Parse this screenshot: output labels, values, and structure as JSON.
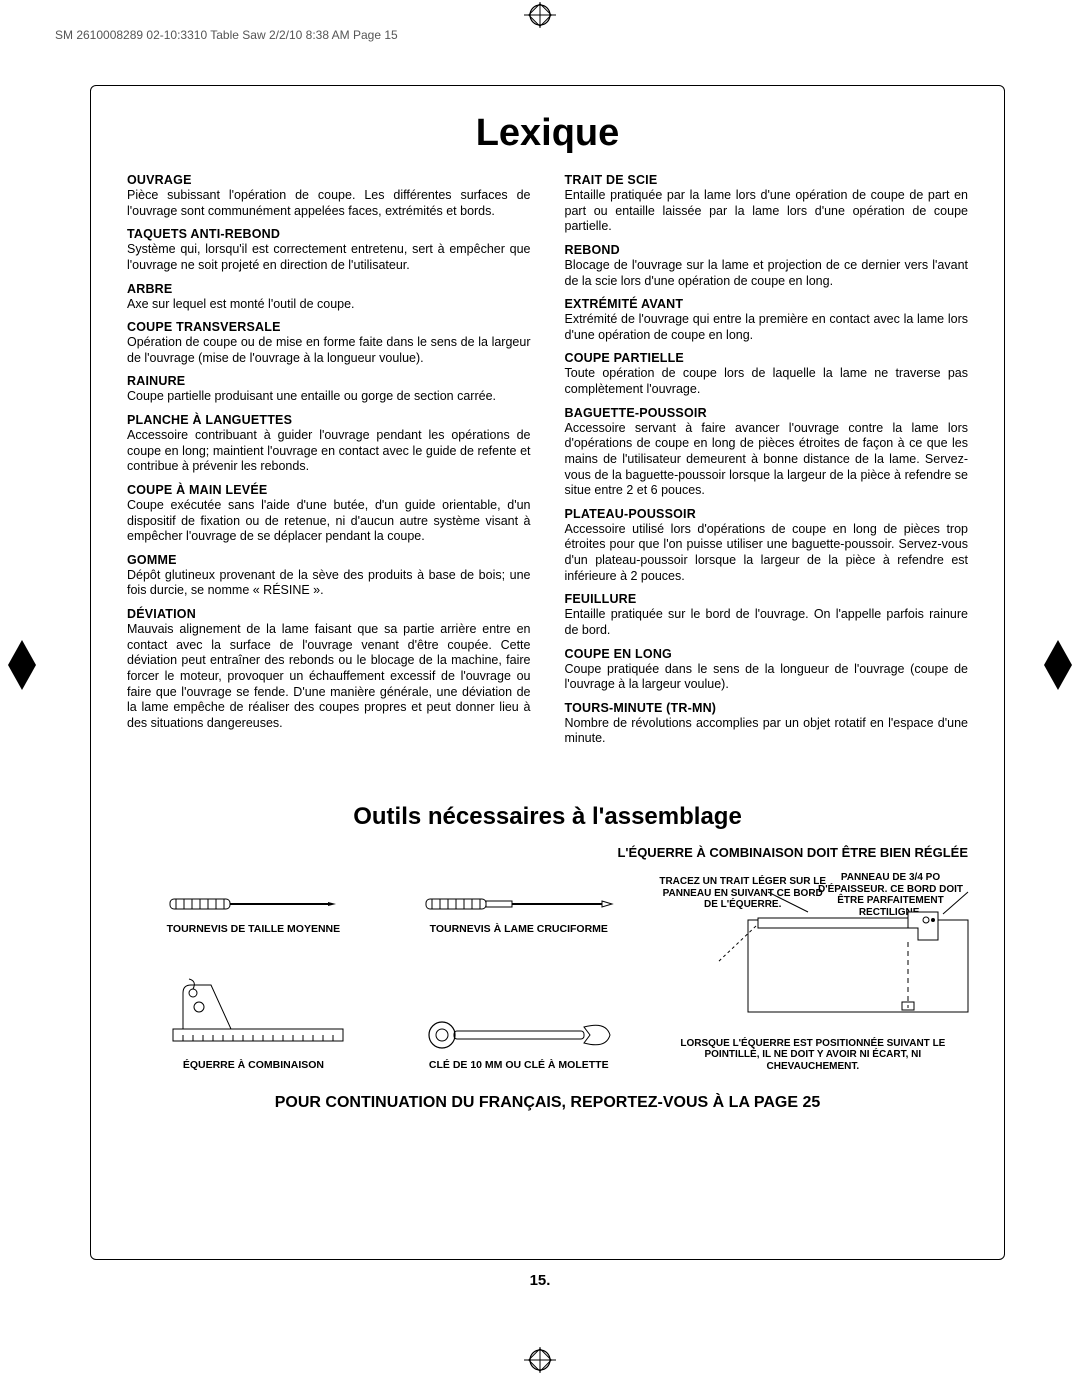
{
  "page_meta": "SM 2610008289 02-10:3310 Table Saw  2/2/10  8:38 AM  Page 15",
  "title": "Lexique",
  "colors": {
    "text": "#000000",
    "meta": "#555555",
    "bg": "#ffffff",
    "border": "#000000"
  },
  "typography": {
    "title_fontsize": 38,
    "subtitle_fontsize": 24,
    "body_fontsize": 12.5,
    "tool_label_fontsize": 10.5,
    "footer_fontsize": 16
  },
  "left_terms": [
    {
      "head": "OUVRAGE",
      "body": "Pièce subissant l'opération de coupe. Les différentes surfaces de l'ouvrage sont communément appelées faces, extrémités et bords."
    },
    {
      "head": "TAQUETS ANTI-REBOND",
      "body": "Système qui, lorsqu'il est correctement entretenu, sert à empêcher que l'ouvrage ne soit projeté en direction de l'utilisateur."
    },
    {
      "head": "ARBRE",
      "body": "Axe sur lequel est monté l'outil de coupe."
    },
    {
      "head": "COUPE TRANSVERSALE",
      "body": "Opération de coupe ou de mise en forme faite dans le sens de la largeur de l'ouvrage (mise de l'ouvrage à la longueur voulue)."
    },
    {
      "head": "RAINURE",
      "body": "Coupe partielle produisant une entaille ou gorge de section carrée."
    },
    {
      "head": "PLANCHE À LANGUETTES",
      "body": "Accessoire contribuant à guider l'ouvrage pendant les opérations de coupe en long; maintient l'ouvrage en contact avec le guide de refente et contribue à prévenir les rebonds."
    },
    {
      "head": "COUPE À MAIN LEVÉE",
      "body": "Coupe exécutée sans l'aide d'une butée, d'un guide orientable, d'un dispositif de fixation ou de retenue, ni d'aucun autre système visant à empêcher l'ouvrage de se déplacer pendant la coupe."
    },
    {
      "head": "GOMME",
      "body": "Dépôt glutineux provenant de la sève des produits à base de bois; une fois durcie, se nomme « RÉSINE »."
    },
    {
      "head": "DÉVIATION",
      "body": "Mauvais alignement de la lame faisant que sa partie arrière entre en contact avec la surface de l'ouvrage venant d'être coupée. Cette déviation peut entraîner des rebonds ou le blocage de la machine, faire forcer le moteur, provoquer un échauffement excessif de l'ouvrage ou faire que l'ouvrage se fende. D'une manière générale, une déviation de la lame empêche de réaliser des coupes propres et peut donner lieu à des situations dangereuses."
    }
  ],
  "right_terms": [
    {
      "head": "TRAIT DE SCIE",
      "body": "Entaille pratiquée par la lame lors d'une opération de coupe de part en part ou entaille laissée par la lame lors d'une opération de coupe partielle."
    },
    {
      "head": "REBOND",
      "body": "Blocage de l'ouvrage sur la lame et projection de ce dernier vers l'avant de la scie lors d'une opération de coupe en long."
    },
    {
      "head": "EXTRÉMITÉ AVANT",
      "body": "Extrémité de l'ouvrage qui entre la première en contact avec la lame lors d'une opération de coupe en long."
    },
    {
      "head": "COUPE PARTIELLE",
      "body": "Toute opération de coupe lors de laquelle la lame ne traverse pas complètement l'ouvrage."
    },
    {
      "head": "BAGUETTE-POUSSOIR",
      "body": "Accessoire servant à faire avancer l'ouvrage contre la lame lors d'opérations de coupe en long de pièces étroites de façon à ce que les mains de l'utilisateur demeurent à bonne distance de la lame. Servez-vous de la baguette-poussoir lorsque la largeur de la pièce à refendre se situe entre 2 et 6 pouces."
    },
    {
      "head": "PLATEAU-POUSSOIR",
      "body": "Accessoire utilisé lors d'opérations de coupe en long de pièces trop étroites pour que l'on puisse utiliser une baguette-poussoir. Servez-vous d'un plateau-poussoir lorsque la largeur de la pièce à refendre est inférieure à 2 pouces."
    },
    {
      "head": "FEUILLURE",
      "body": "Entaille pratiquée sur le bord de l'ouvrage. On l'appelle parfois rainure de bord."
    },
    {
      "head": "COUPE EN LONG",
      "body": "Coupe pratiquée dans le sens de la longueur de l'ouvrage (coupe de l'ouvrage à la largeur voulue)."
    },
    {
      "head": "TOURS-MINUTE (TR-MN)",
      "body": "Nombre de révolutions accomplies par un objet rotatif en l'espace d'une minute."
    }
  ],
  "tools_title": "Outils nécessaires à l'assemblage",
  "combo_header": "L'ÉQUERRE À COMBINAISON DOIT ÊTRE BIEN RÉGLÉE",
  "tools": {
    "screwdriver_med": "TOURNEVIS DE TAILLE MOYENNE",
    "screwdriver_phillips": "TOURNEVIS À LAME CRUCIFORME",
    "combo_square": "ÉQUERRE À COMBINAISON",
    "wrench": "CLÉ DE 10 MM OU CLÉ À MOLETTE"
  },
  "combo_notes": {
    "note1": "TRACEZ UN TRAIT LÉGER SUR LE PANNEAU EN SUIVANT CE BORD DE L'ÉQUERRE.",
    "note2": "PANNEAU DE 3/4 PO D'ÉPAISSEUR. CE BORD DOIT ÊTRE PARFAITEMENT RECTILIGNE.",
    "note3": "LORSQUE L'ÉQUERRE EST POSITIONNÉE SUIVANT LE POINTILLÉ, IL NE DOIT Y AVOIR NI ÉCART, NI CHEVAUCHEMENT."
  },
  "footer": "POUR CONTINUATION DU FRANÇAIS, REPORTEZ-VOUS À LA PAGE 25",
  "page_number": "15."
}
